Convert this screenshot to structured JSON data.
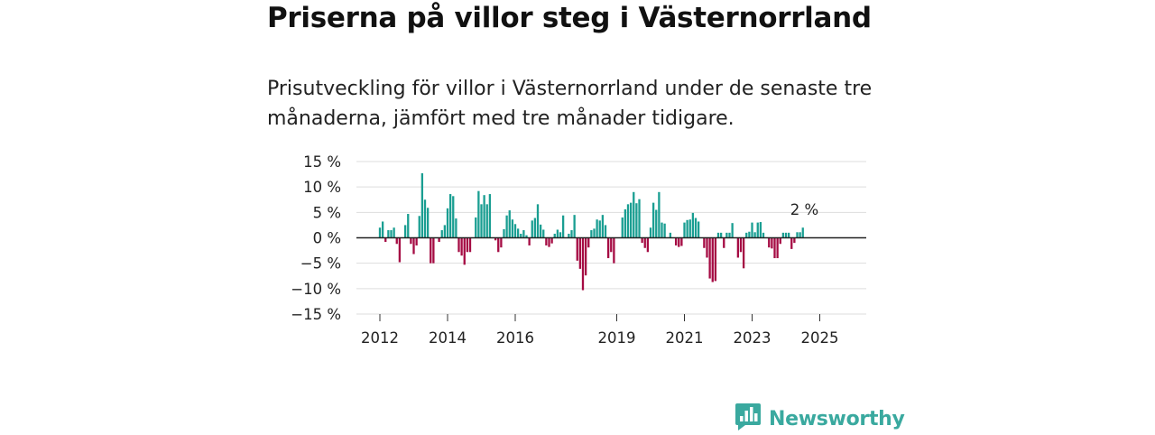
{
  "header": {
    "title": "Priserna på villor steg i Västernorrland",
    "subtitle": "Prisutveckling för villor i Västernorrland under de senaste tre månaderna, jämfört med tre månader tidigare."
  },
  "colors": {
    "positive": "#1a9e92",
    "negative": "#a50b43",
    "brand": "#3aa99f"
  },
  "brand": {
    "name": "Newsworthy",
    "icon": "newsworthy-bar-chart-logo-icon"
  },
  "chart_data": {
    "type": "bar",
    "unit": "%",
    "ylim": [
      -15,
      15
    ],
    "yticks": [
      15,
      10,
      5,
      0,
      -5,
      -10,
      -15
    ],
    "ytick_labels": [
      "15 %",
      "10 %",
      "5 %",
      "0 %",
      "−5 %",
      "−10 %",
      "−15 %"
    ],
    "x_ticks": [
      {
        "label": "2012",
        "index": 0
      },
      {
        "label": "2014",
        "index": 24
      },
      {
        "label": "2016",
        "index": 48
      },
      {
        "label": "2019",
        "index": 84
      },
      {
        "label": "2021",
        "index": 108
      },
      {
        "label": "2023",
        "index": 132
      },
      {
        "label": "2025",
        "index": 156
      }
    ],
    "last_value_label": "2 %",
    "categories_start": "2012-01",
    "frequency": "monthly",
    "values": [
      2,
      3.2,
      -0.8,
      1.5,
      1.5,
      2,
      -1.2,
      -4.8,
      0,
      2.5,
      4.7,
      -1.2,
      -3.2,
      -1.5,
      4.3,
      12.7,
      7.5,
      5.9,
      -5,
      -5,
      0,
      -0.8,
      1.5,
      2.5,
      5.8,
      8.6,
      8.2,
      3.8,
      -2.8,
      -3.5,
      -5.3,
      -2.8,
      -2.8,
      0,
      4,
      9.2,
      6.6,
      8.4,
      6.6,
      8.6,
      0,
      -0.5,
      -2.8,
      -1.9,
      1.7,
      4.4,
      5.4,
      3.6,
      2.7,
      1.8,
      0.8,
      1.5,
      0.5,
      -1.5,
      3.4,
      3.9,
      6.6,
      2.6,
      1.6,
      -1.5,
      -1.8,
      -1.1,
      0.8,
      1.6,
      1.1,
      4.4,
      0,
      0.8,
      1.5,
      4.5,
      -4.5,
      -6.1,
      -10.3,
      -7.4,
      -1.9,
      1.5,
      1.8,
      3.6,
      3.4,
      4.5,
      2.5,
      -4,
      -2.8,
      -5,
      0,
      0,
      4,
      5.6,
      6.6,
      6.9,
      9,
      6.8,
      7.6,
      -1,
      -2,
      -2.8,
      2,
      6.9,
      5.5,
      9,
      3,
      2.8,
      0,
      1,
      0,
      -1.5,
      -1.8,
      -1.6,
      3,
      3.5,
      3.6,
      4.9,
      3.9,
      3.2,
      0,
      -2,
      -3.9,
      -8,
      -8.7,
      -8.5,
      1,
      1,
      -2,
      1,
      1,
      2.9,
      0,
      -3.9,
      -2.8,
      -6,
      1,
      1.2,
      3,
      1.1,
      3,
      3.1,
      1,
      0,
      -1.9,
      -2.1,
      -4,
      -4,
      -1.2,
      1,
      1,
      1,
      -2.2,
      -1,
      1.1,
      1.1,
      2
    ]
  }
}
